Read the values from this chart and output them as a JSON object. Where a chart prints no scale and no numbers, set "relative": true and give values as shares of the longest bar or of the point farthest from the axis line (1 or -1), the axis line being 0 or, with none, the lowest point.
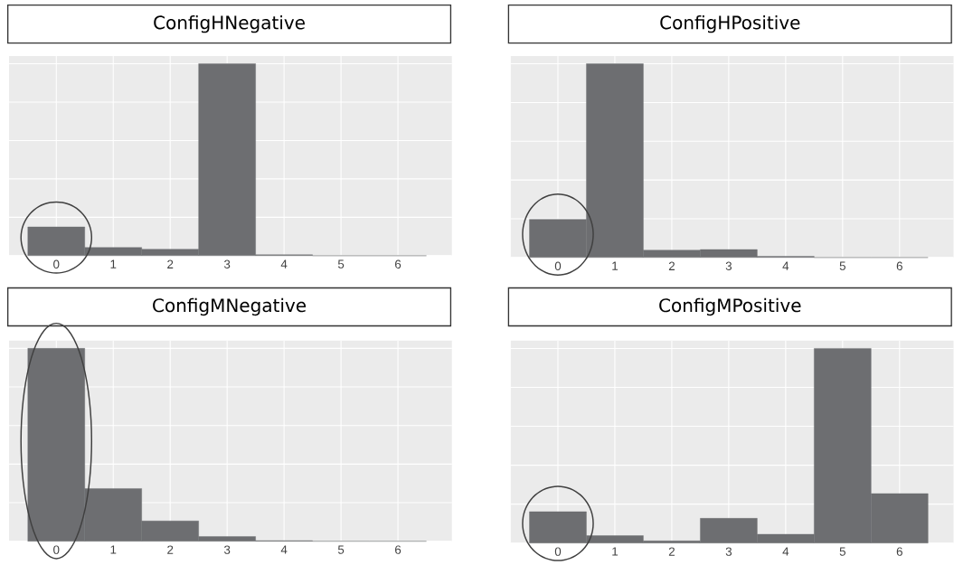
{
  "chart_data": [
    {
      "type": "bar",
      "title": "ConfigHNegative",
      "categories": [
        "0",
        "1",
        "2",
        "3",
        "4",
        "5",
        "6"
      ],
      "values": [
        0.15,
        0.043,
        0.034,
        1,
        0.005,
        0,
        0
      ],
      "color": "#6d6e71",
      "relative": true,
      "grid": true
    },
    {
      "type": "bar",
      "title": "ConfigHPositive",
      "categories": [
        "0",
        "1",
        "2",
        "3",
        "4",
        "5",
        "6"
      ],
      "values": [
        0.197,
        1,
        0.038,
        0.041,
        0.006,
        0,
        0
      ],
      "color": "#6d6e71",
      "relative": true,
      "grid": true
    },
    {
      "type": "bar",
      "title": "ConfigMNegative",
      "categories": [
        "0",
        "1",
        "2",
        "3",
        "4",
        "5",
        "6"
      ],
      "values": [
        1,
        0.273,
        0.105,
        0.024,
        0.003,
        0,
        0
      ],
      "color": "#6d6e71",
      "relative": true,
      "grid": true
    },
    {
      "type": "bar",
      "title": "ConfigMPositive",
      "categories": [
        "0",
        "1",
        "2",
        "3",
        "4",
        "5",
        "6"
      ],
      "values": [
        0.161,
        0.038,
        0.011,
        0.127,
        0.045,
        1,
        0.254
      ],
      "color": "#6d6e71",
      "relative": true,
      "grid": true
    }
  ]
}
